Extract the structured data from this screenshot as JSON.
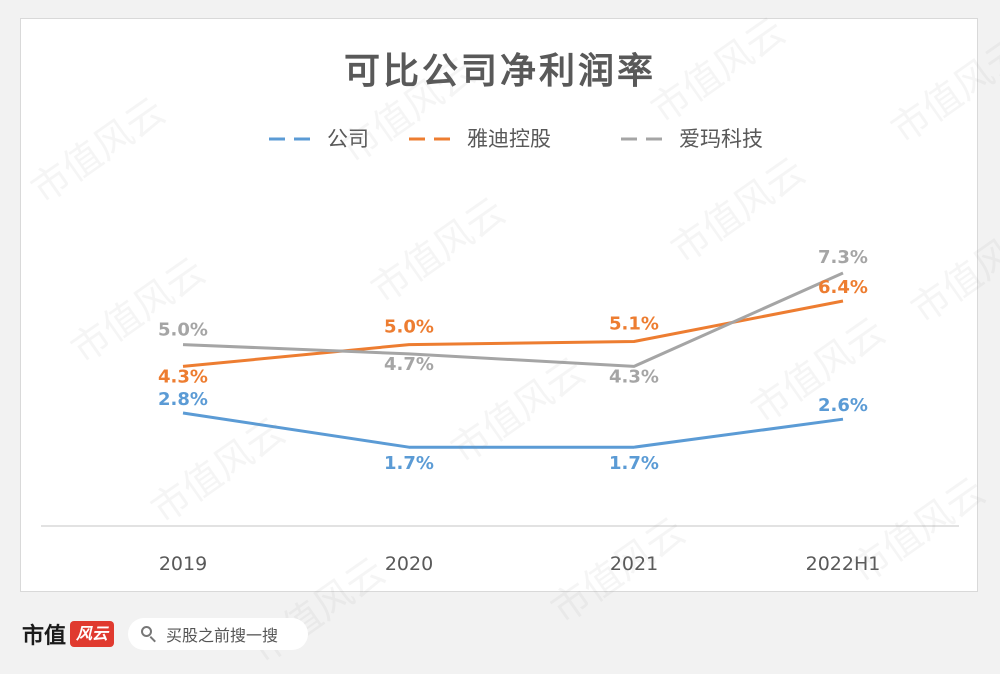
{
  "chart_data": {
    "type": "line",
    "title": "可比公司净利润率",
    "categories": [
      "2019",
      "2020",
      "2021",
      "2022H1"
    ],
    "series": [
      {
        "name": "公司",
        "color": "#5b9bd5",
        "values": [
          2.8,
          1.7,
          1.7,
          2.6
        ],
        "labels": [
          "2.8%",
          "1.7%",
          "1.7%",
          "2.6%"
        ]
      },
      {
        "name": "雅迪控股",
        "color": "#ed7d31",
        "values": [
          4.3,
          5.0,
          5.1,
          6.4
        ],
        "labels": [
          "4.3%",
          "5.0%",
          "5.1%",
          "6.4%"
        ]
      },
      {
        "name": "爱玛科技",
        "color": "#a5a5a5",
        "values": [
          5.0,
          4.7,
          4.3,
          7.3
        ],
        "labels": [
          "5.0%",
          "4.7%",
          "4.3%",
          "7.3%"
        ]
      }
    ],
    "legend_position": "top",
    "grid": false,
    "xlabel": "",
    "ylabel": ""
  },
  "watermark": "市值风云",
  "footer": {
    "brand": "市值",
    "brand_badge": "风云",
    "search_text": "买股之前搜一搜",
    "search_icon": "search-icon"
  }
}
